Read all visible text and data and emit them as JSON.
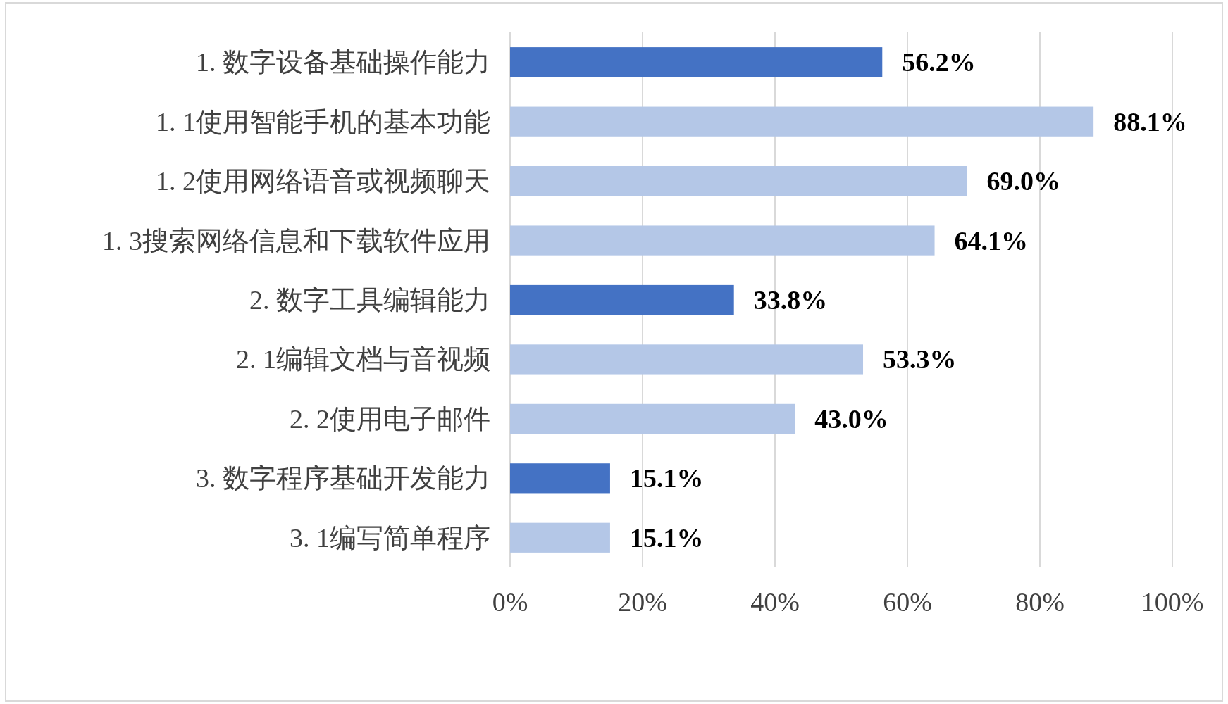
{
  "chart_data": {
    "type": "bar",
    "orientation": "horizontal",
    "categories": [
      "1. 数字设备基础操作能力",
      "1. 1使用智能手机的基本功能",
      "1. 2使用网络语音或视频聊天",
      "1. 3搜索网络信息和下载软件应用",
      "2. 数字工具编辑能力",
      "2. 1编辑文档与音视频",
      "2. 2使用电子邮件",
      "3. 数字程序基础开发能力",
      "3. 1编写简单程序"
    ],
    "values": [
      56.2,
      88.1,
      69.0,
      64.1,
      33.8,
      53.3,
      43.0,
      15.1,
      15.1
    ],
    "value_labels": [
      "56.2%",
      "88.1%",
      "69.0%",
      "64.1%",
      "33.8%",
      "53.3%",
      "43.0%",
      "15.1%",
      "15.1%"
    ],
    "colors": [
      "#4472c4",
      "#b4c7e7",
      "#b4c7e7",
      "#b4c7e7",
      "#4472c4",
      "#b4c7e7",
      "#b4c7e7",
      "#4472c4",
      "#b4c7e7"
    ],
    "xlim": [
      0,
      100
    ],
    "xticks": [
      {
        "value": 0,
        "label": "0%"
      },
      {
        "value": 20,
        "label": "20%"
      },
      {
        "value": 40,
        "label": "40%"
      },
      {
        "value": 60,
        "label": "60%"
      },
      {
        "value": 80,
        "label": "80%"
      },
      {
        "value": 100,
        "label": "100%"
      }
    ],
    "grid": "x"
  }
}
